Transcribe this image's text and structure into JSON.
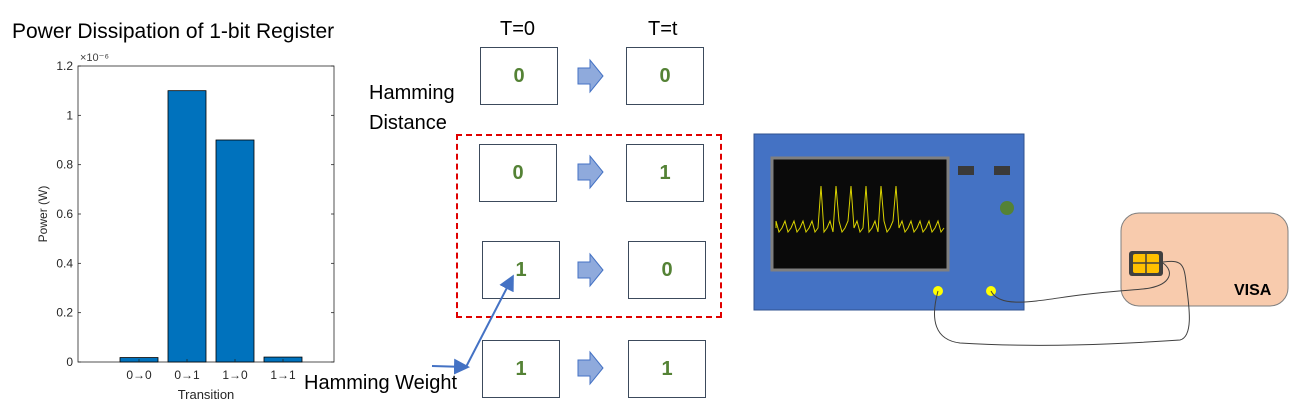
{
  "figure": {
    "title": "Power Dissipation of 1-bit Register",
    "col_headers": [
      "T=0",
      "T=t"
    ],
    "hamming_distance_label": "Hamming Distance",
    "hamming_weight_label": "Hamming Weight",
    "rows": [
      {
        "from": "0",
        "to": "0"
      },
      {
        "from": "0",
        "to": "1"
      },
      {
        "from": "1",
        "to": "0"
      },
      {
        "from": "1",
        "to": "1"
      }
    ],
    "card_brand": "VISA",
    "colors": {
      "bar": "#0072bd",
      "value_text": "#548235",
      "arrow_fill": "#8faadc",
      "dashed_box": "#e00000",
      "scope_body": "#4472c4",
      "card": "#f8cbad",
      "probe": "#ffff00",
      "knob": "#548235"
    }
  },
  "chart_data": {
    "type": "bar",
    "categories": [
      "0→0",
      "0→1",
      "1→0",
      "1→1"
    ],
    "values": [
      1.8e-08,
      1.1e-06,
      9e-07,
      2e-08
    ],
    "ylabel": "Power (W)",
    "xlabel": "Transition",
    "ylim": [
      0,
      1.2e-06
    ],
    "ytick_labels": [
      "0",
      "0.2",
      "0.4",
      "0.6",
      "0.8",
      "1",
      "1.2"
    ],
    "y_multiplier": "×10⁻⁶",
    "grid": false
  }
}
